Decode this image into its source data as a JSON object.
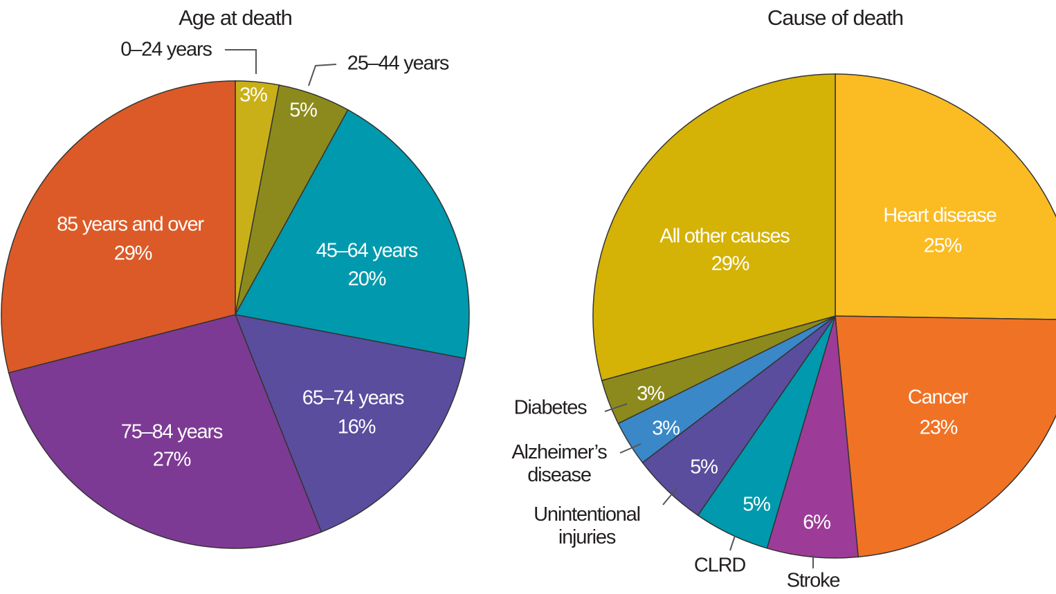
{
  "chart_data": [
    {
      "type": "pie",
      "title": "Age at death",
      "categories": [
        "0–24 years",
        "25–44 years",
        "45–64 years",
        "65–74 years",
        "75–84 years",
        "85 years and over"
      ],
      "values": [
        3,
        5,
        20,
        16,
        27,
        29
      ],
      "value_labels": [
        "3%",
        "5%",
        "20%",
        "16%",
        "27%",
        "29%"
      ],
      "colors": [
        "#c9b018",
        "#8c8a1c",
        "#0099ad",
        "#5a4d9e",
        "#7d3a94",
        "#dc5a27"
      ]
    },
    {
      "type": "pie",
      "title": "Cause of death",
      "categories": [
        "Heart disease",
        "Cancer",
        "Stroke",
        "CLRD",
        "Unintentional injuries",
        "Alzheimer’s disease",
        "Diabetes",
        "All other causes"
      ],
      "values": [
        25,
        23,
        6,
        5,
        5,
        3,
        3,
        29
      ],
      "value_labels": [
        "25%",
        "23%",
        "6%",
        "5%",
        "5%",
        "3%",
        "3%",
        "29%"
      ],
      "colors": [
        "#fbbb22",
        "#f07224",
        "#9c3c98",
        "#0099ad",
        "#5a4d9e",
        "#3a88c8",
        "#8c8a1c",
        "#d4b206"
      ]
    }
  ]
}
